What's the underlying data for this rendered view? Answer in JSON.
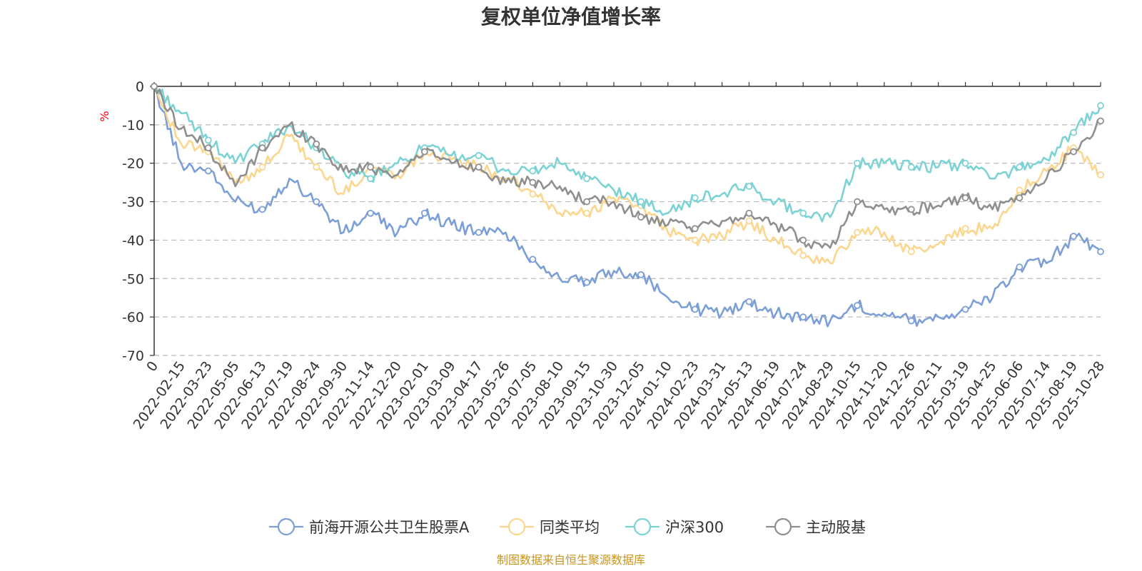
{
  "chart_data": {
    "type": "line",
    "title": "复权单位净值增长率",
    "ylabel": "%",
    "ylim": [
      -70,
      0
    ],
    "yticks": [
      0,
      -10,
      -20,
      -30,
      -40,
      -50,
      -60,
      -70
    ],
    "yticklabels": [
      "0",
      "-10",
      "-20",
      "-30",
      "-40",
      "-50",
      "-60",
      "-70"
    ],
    "grid": true,
    "legend_position": "bottom",
    "categories": [
      "0",
      "2022-02-15",
      "2022-03-23",
      "2022-05-05",
      "2022-06-13",
      "2022-07-19",
      "2022-08-24",
      "2022-09-30",
      "2022-11-14",
      "2022-12-20",
      "2023-02-01",
      "2023-03-09",
      "2023-04-17",
      "2023-05-26",
      "2023-07-05",
      "2023-08-10",
      "2023-09-15",
      "2023-10-30",
      "2023-12-05",
      "2024-01-10",
      "2024-02-23",
      "2024-03-31",
      "2024-05-13",
      "2024-06-19",
      "2024-07-24",
      "2024-08-29",
      "2024-10-15",
      "2024-11-20",
      "2024-12-26",
      "2025-02-11",
      "2025-03-19",
      "2025-04-25",
      "2025-06-06",
      "2025-07-14",
      "2025-08-19",
      "2025-10-28"
    ],
    "series": [
      {
        "name": "前海开源公共卫生股票A",
        "color": "#7b9fd6",
        "values": [
          0,
          -20,
          -22,
          -30,
          -32,
          -24,
          -30,
          -38,
          -33,
          -38,
          -33,
          -36,
          -38,
          -38,
          -45,
          -50,
          -51,
          -48,
          -49,
          -55,
          -58,
          -59,
          -56,
          -59,
          -60,
          -61,
          -57,
          -59,
          -61,
          -60,
          -58,
          -55,
          -47,
          -46,
          -39,
          -43
        ]
      },
      {
        "name": "同类平均",
        "color": "#fcd68e",
        "values": [
          0,
          -15,
          -17,
          -25,
          -21,
          -13,
          -21,
          -28,
          -21,
          -23,
          -17,
          -19,
          -21,
          -24,
          -28,
          -33,
          -33,
          -29,
          -31,
          -38,
          -40,
          -39,
          -35,
          -40,
          -44,
          -46,
          -38,
          -38,
          -43,
          -41,
          -37,
          -37,
          -27,
          -22,
          -16,
          -23
        ]
      },
      {
        "name": "沪深300",
        "color": "#7dd3d4",
        "values": [
          0,
          -7,
          -14,
          -20,
          -15,
          -10,
          -16,
          -22,
          -24,
          -20,
          -16,
          -18,
          -18,
          -22,
          -22,
          -20,
          -24,
          -27,
          -30,
          -33,
          -29,
          -28,
          -26,
          -30,
          -33,
          -34,
          -20,
          -20,
          -21,
          -21,
          -20,
          -24,
          -21,
          -19,
          -12,
          -5
        ]
      },
      {
        "name": "主动股基",
        "color": "#8f8f8f",
        "values": [
          0,
          -11,
          -16,
          -26,
          -16,
          -10,
          -15,
          -22,
          -21,
          -23,
          -17,
          -20,
          -21,
          -25,
          -25,
          -26,
          -30,
          -30,
          -34,
          -36,
          -37,
          -35,
          -33,
          -36,
          -40,
          -42,
          -30,
          -32,
          -32,
          -31,
          -29,
          -32,
          -29,
          -24,
          -17,
          -9
        ]
      }
    ]
  },
  "source_note": "制图数据来自恒生聚源数据库"
}
